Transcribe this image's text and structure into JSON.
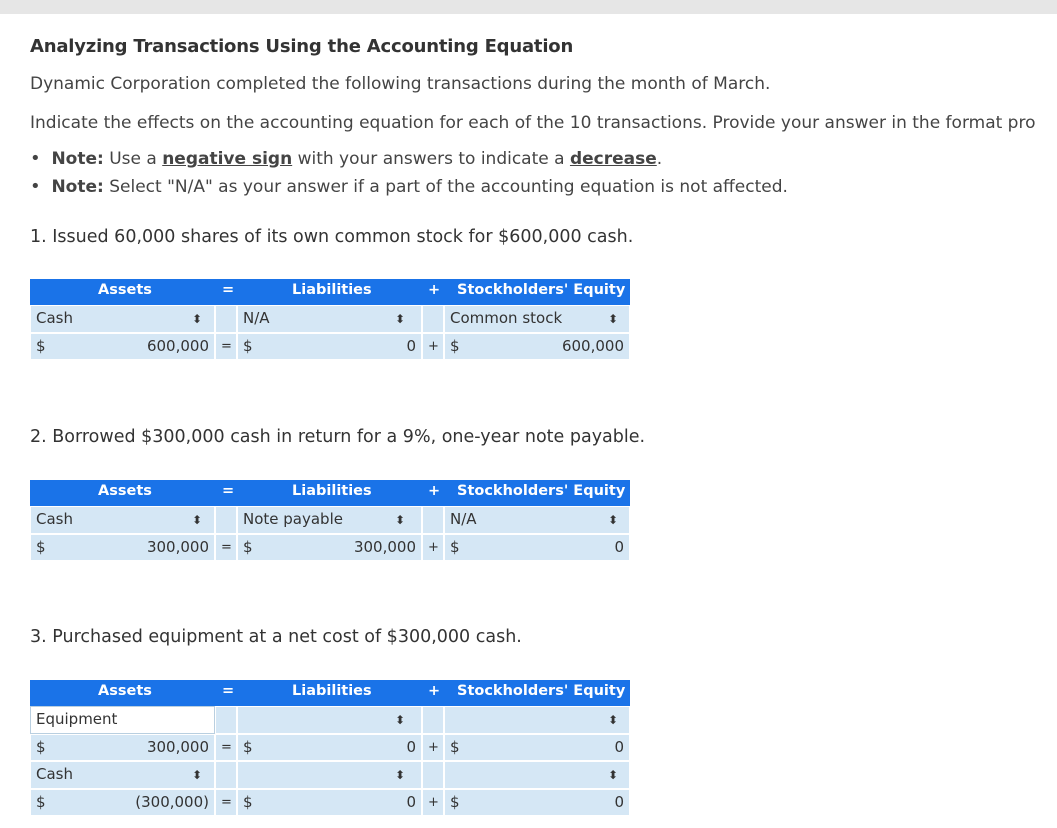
{
  "title": "Analyzing Transactions Using the Accounting Equation",
  "intro": "Dynamic Corporation completed the following transactions during the month of March.",
  "instruction": "Indicate the effects on the accounting equation for each of the 10 transactions. Provide your answer in the format pro",
  "notes": [
    {
      "label": "Note:",
      "pre": " Use a ",
      "link": "negative sign",
      "mid": " with your answers to indicate a ",
      "link2": "decrease",
      "post": "."
    },
    {
      "label": "Note:",
      "text": " Select \"N/A\" as your answer if a part of the accounting equation is not affected."
    }
  ],
  "headers": {
    "assets": "Assets",
    "eq": "=",
    "liabilities": "Liabilities",
    "plus": "+",
    "equity": "Stockholders' Equity"
  },
  "transactions": [
    {
      "question": "1. Issued 60,000 shares of its own common stock for $600,000 cash.",
      "asset_account": "Cash",
      "asset_value": "600,000",
      "liability_account": "N/A",
      "liability_value": "0",
      "equity_account": "Common stock",
      "equity_value": "600,000"
    },
    {
      "question": "2. Borrowed $300,000 cash in return for a 9%, one-year note payable.",
      "asset_account": "Cash",
      "asset_value": "300,000",
      "liability_account": "Note payable",
      "liability_value": "300,000",
      "equity_account": "N/A",
      "equity_value": "0"
    },
    {
      "question": "3. Purchased equipment at a net cost of $300,000 cash.",
      "rows": [
        {
          "asset_account": "Equipment",
          "asset_value": "300,000",
          "liability_value": "0",
          "equity_value": "0"
        },
        {
          "asset_account": "Cash",
          "asset_value": "(300,000)",
          "liability_value": "0",
          "equity_value": "0"
        }
      ]
    }
  ],
  "dollar": "$",
  "eq_sign": "=",
  "plus_sign": "+",
  "colors": {
    "header": "#1a73e8",
    "cell": "#d5e7f5",
    "topbar": "#e6e6e6"
  }
}
